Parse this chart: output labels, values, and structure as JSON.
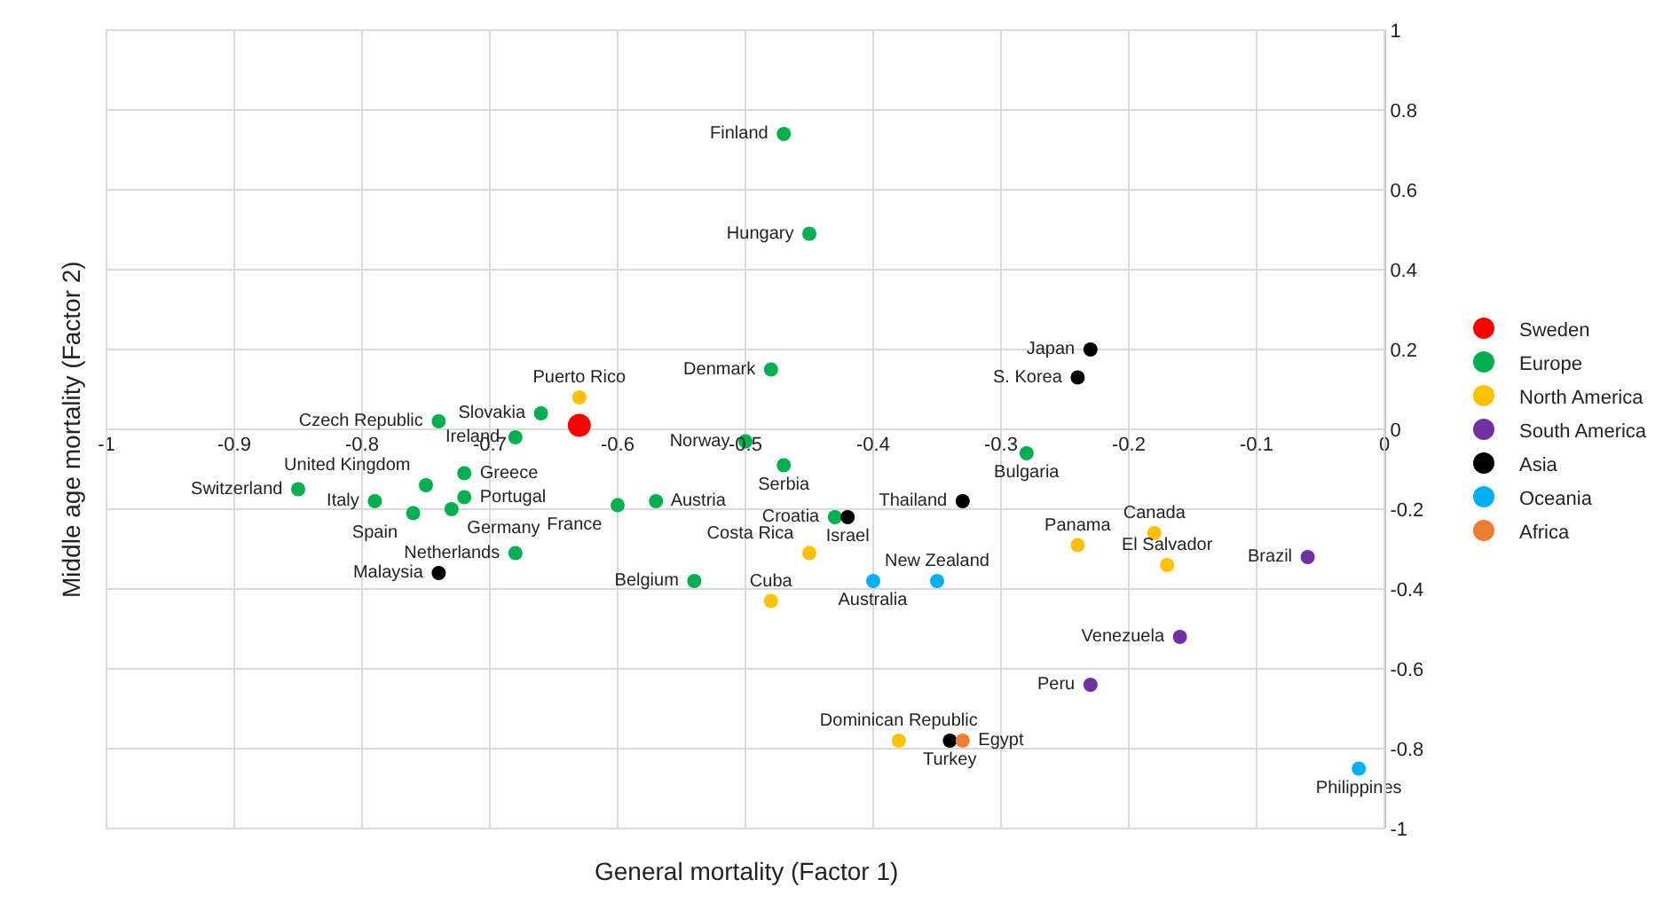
{
  "chart_data": {
    "type": "scatter",
    "xlabel": "General mortality (Factor 1)",
    "ylabel": "Middle age mortality (Factor 2)",
    "xlim": [
      -1,
      0
    ],
    "ylim": [
      -1,
      1
    ],
    "xticks": [
      -1,
      -0.9,
      -0.8,
      -0.7,
      -0.6,
      -0.5,
      -0.4,
      -0.3,
      -0.2,
      -0.1,
      0
    ],
    "yticks": [
      -1,
      -0.8,
      -0.6,
      -0.4,
      -0.2,
      0,
      0.2,
      0.4,
      0.6,
      0.8,
      1
    ],
    "grid": true,
    "legend": "right",
    "marker": "circle",
    "series": [
      {
        "name": "Sweden",
        "color": "#ff0000",
        "x": [
          -0.63
        ],
        "values": [
          0.01
        ],
        "value_labels": [
          null
        ]
      },
      {
        "name": "Europe",
        "color": "#00b050",
        "x": [
          -0.47,
          -0.45,
          -0.48,
          -0.5,
          -0.74,
          -0.66,
          -0.68,
          -0.72,
          -0.75,
          -0.85,
          -0.79,
          -0.72,
          -0.76,
          -0.73,
          -0.6,
          -0.57,
          -0.68,
          -0.54,
          -0.47,
          -0.28,
          -0.43
        ],
        "values": [
          0.74,
          0.49,
          0.15,
          -0.03,
          0.02,
          0.04,
          -0.02,
          -0.11,
          -0.14,
          -0.15,
          -0.18,
          -0.17,
          -0.21,
          -0.2,
          -0.19,
          -0.18,
          -0.31,
          -0.38,
          -0.09,
          -0.06,
          -0.22
        ],
        "value_labels": [
          "Finland",
          "Hungary",
          "Denmark",
          "Norway",
          "Czech Republic",
          "Slovakia",
          "Ireland",
          "Greece",
          "United Kingdom",
          "Switzerland",
          "Italy",
          "Portugal",
          "Spain",
          "Germany",
          "France",
          "Austria",
          "Netherlands",
          "Belgium",
          "Serbia",
          "Bulgaria",
          "Croatia"
        ]
      },
      {
        "name": "North America",
        "color": "#ffc000",
        "x": [
          -0.63,
          -0.45,
          -0.48,
          -0.24,
          -0.18,
          -0.17,
          -0.38
        ],
        "values": [
          0.08,
          -0.31,
          -0.43,
          -0.29,
          -0.26,
          -0.34,
          -0.78
        ],
        "value_labels": [
          "Puerto Rico",
          "Costa Rica",
          "Cuba",
          "Panama",
          "Canada",
          "El Salvador",
          "Dominican Republic"
        ]
      },
      {
        "name": "South America",
        "color": "#7030a0",
        "x": [
          -0.06,
          -0.16,
          -0.23
        ],
        "values": [
          -0.32,
          -0.52,
          -0.64
        ],
        "value_labels": [
          "Brazil",
          "Venezuela",
          "Peru"
        ]
      },
      {
        "name": "Asia",
        "color": "#000000",
        "x": [
          -0.23,
          -0.24,
          -0.74,
          -0.33,
          -0.42,
          -0.34
        ],
        "values": [
          0.2,
          0.13,
          -0.36,
          -0.18,
          -0.22,
          -0.78
        ],
        "value_labels": [
          "Japan",
          "S. Korea",
          "Malaysia",
          "Thailand",
          "Israel",
          "Turkey"
        ]
      },
      {
        "name": "Oceania",
        "color": "#00b0f0",
        "x": [
          -0.4,
          -0.35,
          -0.02
        ],
        "values": [
          -0.38,
          -0.38,
          -0.85
        ],
        "value_labels": [
          "Australia",
          "New Zealand",
          "Philippines"
        ]
      },
      {
        "name": "Africa",
        "color": "#ed7d31",
        "x": [
          -0.33
        ],
        "values": [
          -0.78
        ],
        "value_labels": [
          "Egypt"
        ]
      }
    ]
  }
}
